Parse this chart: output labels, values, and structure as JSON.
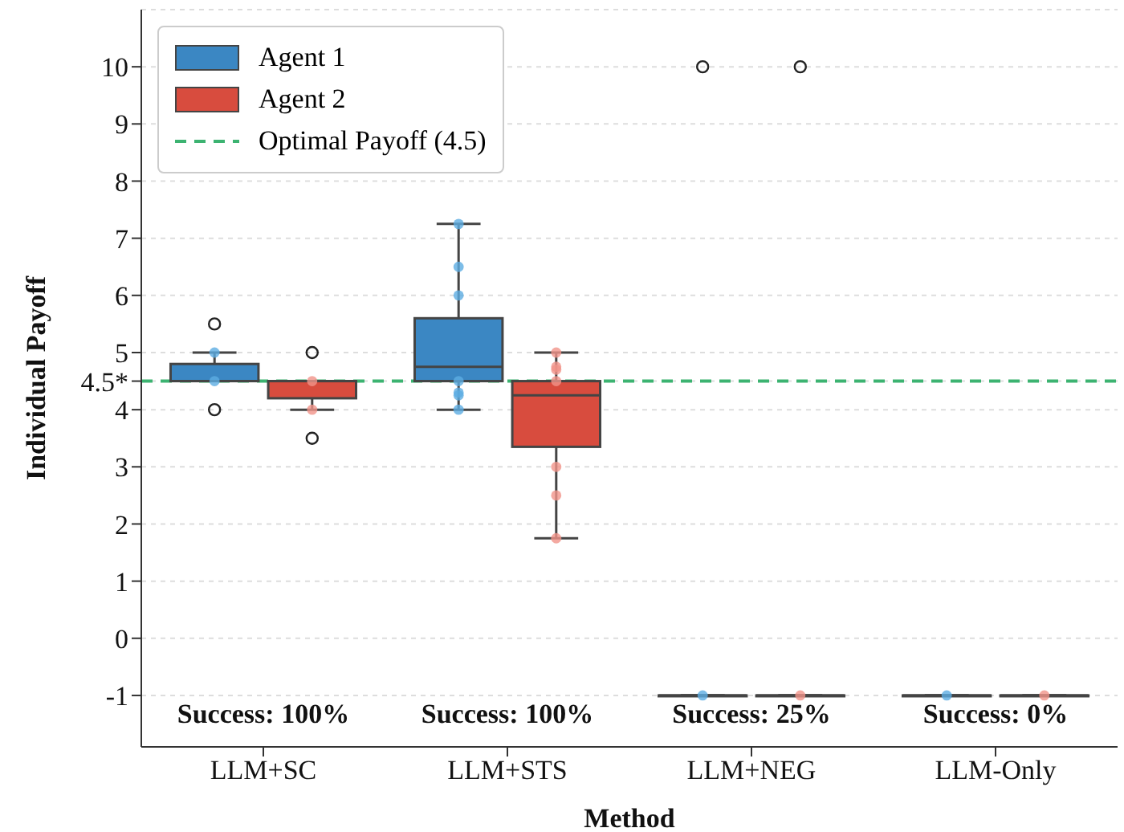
{
  "chart_data": {
    "type": "box",
    "xlabel": "Method",
    "ylabel": "Individual Payoff",
    "categories": [
      "LLM+SC",
      "LLM+STS",
      "LLM+NEG",
      "LLM-Only"
    ],
    "ylim": [
      -1.9,
      11
    ],
    "yticks": [
      -1,
      0,
      1,
      2,
      3,
      4,
      {
        "value": 4.5,
        "label": "4.5*"
      },
      5,
      6,
      7,
      8,
      9,
      10
    ],
    "grid": "y",
    "legend": "top left",
    "series": [
      {
        "name": "Agent 1",
        "color": "#3b87c3",
        "boxes": [
          {
            "low": 4.5,
            "q1": 4.5,
            "median": 4.5,
            "q3": 4.8,
            "high": 5,
            "outliers": [
              5.5,
              4
            ]
          },
          {
            "low": 4,
            "q1": 4.5,
            "median": 4.75,
            "q3": 5.6,
            "high": 7.25
          },
          {
            "low": -1,
            "q1": -1,
            "median": -1,
            "q3": -1,
            "high": -1,
            "outliers": [
              10
            ]
          },
          {
            "low": -1,
            "q1": -1,
            "median": -1,
            "q3": -1,
            "high": -1
          }
        ]
      },
      {
        "name": "Agent 2",
        "color": "#d84c3e",
        "boxes": [
          {
            "low": 4,
            "q1": 4.2,
            "median": 4.5,
            "q3": 4.5,
            "high": 4.5,
            "outliers": [
              5,
              3.5
            ]
          },
          {
            "low": 1.75,
            "q1": 3.35,
            "median": 4.25,
            "q3": 4.5,
            "high": 5
          },
          {
            "low": -1,
            "q1": -1,
            "median": -1,
            "q3": -1,
            "high": -1,
            "outliers": [
              10
            ]
          },
          {
            "low": -1,
            "q1": -1,
            "median": -1,
            "q3": -1,
            "high": -1
          }
        ]
      },
      {
        "type": "scatter",
        "color": "#5dade2",
        "x": [
          "LLM+SC",
          "LLM+SC",
          "LLM+STS",
          "LLM+STS",
          "LLM+STS",
          "LLM+STS",
          "LLM+STS",
          "LLM+STS",
          "LLM+STS",
          "LLM+NEG",
          "LLM-Only"
        ],
        "values": [
          4.5,
          5,
          4.25,
          4.5,
          6,
          6.5,
          7.25,
          4.3,
          4,
          -1,
          -1
        ]
      },
      {
        "type": "scatter",
        "color": "#f1948a",
        "x": [
          "LLM+SC",
          "LLM+SC",
          "LLM+STS",
          "LLM+STS",
          "LLM+STS",
          "LLM+STS",
          "LLM+STS",
          "LLM+STS",
          "LLM+STS",
          "LLM+NEG",
          "LLM-Only"
        ],
        "values": [
          4.5,
          4,
          1.75,
          2.5,
          3,
          4.5,
          4.75,
          5,
          4.7,
          -1,
          -1
        ]
      }
    ],
    "ref_lines": [
      {
        "axis": "y",
        "value": 4.5,
        "label": "Optimal Payoff (4.5)",
        "color": "#3cb371",
        "line_style": "dashed"
      }
    ],
    "annotations": [
      "Success: 100%",
      "Success: 100%",
      "Success: 25%",
      "Success: 0%"
    ]
  }
}
